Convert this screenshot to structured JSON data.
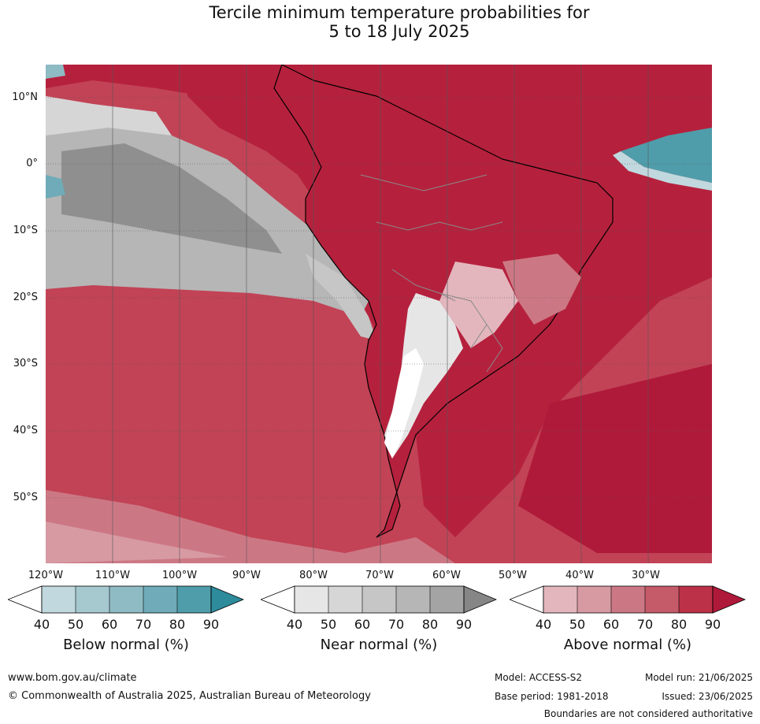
{
  "header": {
    "title_line1": "Tercile minimum temperature probabilities for",
    "title_line2": "5 to 18 July 2025"
  },
  "map": {
    "lat_labels": [
      "10°N",
      "0°",
      "10°S",
      "20°S",
      "30°S",
      "40°S",
      "50°S"
    ],
    "lon_labels": [
      "120°W",
      "110°W",
      "100°W",
      "90°W",
      "80°W",
      "70°W",
      "60°W",
      "50°W",
      "40°W",
      "30°W"
    ],
    "colors": {
      "ocean_base": "#c24356",
      "land_base": "#b5213d",
      "coastline": "#000000",
      "borders": "#8a8a8a"
    }
  },
  "legends": [
    {
      "title": "Below normal (%)",
      "ticks": [
        "40",
        "50",
        "60",
        "70",
        "80",
        "90"
      ],
      "colors": [
        "#c0d8de",
        "#a6c8cf",
        "#8fbbc4",
        "#6fabb8",
        "#4f9daa",
        "#2d8b9c"
      ]
    },
    {
      "title": "Near normal (%)",
      "ticks": [
        "40",
        "50",
        "60",
        "70",
        "80",
        "90"
      ],
      "colors": [
        "#e6e6e6",
        "#d6d6d6",
        "#c6c6c6",
        "#b6b6b6",
        "#a4a4a4",
        "#868686"
      ]
    },
    {
      "title": "Above normal (%)",
      "ticks": [
        "40",
        "50",
        "60",
        "70",
        "80",
        "90"
      ],
      "colors": [
        "#e3b6bd",
        "#d79aa3",
        "#cc7884",
        "#c55a68",
        "#bc3147",
        "#b01a3a"
      ]
    }
  ],
  "footer": {
    "website": "www.bom.gov.au/climate",
    "copyright": "© Commonwealth of Australia 2025, Australian Bureau of Meteorology",
    "model": "Model: ACCESS-S2",
    "base_period": "Base period: 1981-2018",
    "model_run": "Model run: 21/06/2025",
    "issued": "Issued: 23/06/2025",
    "disclaimer": "Boundaries are not considered authoritative"
  }
}
